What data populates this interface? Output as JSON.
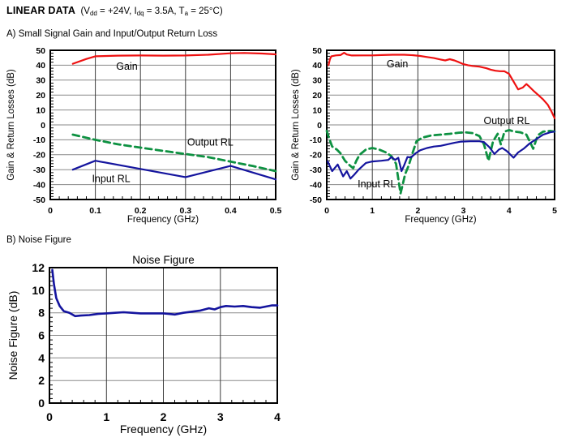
{
  "page": {
    "title_bold": "LINEAR DATA",
    "conditions": {
      "p1": "  (V",
      "s1": "dd",
      "p2": " = +24V, I",
      "s2": "dq",
      "p3": " = 3.5A, T",
      "s3": "a",
      "p4": " = 25°C)"
    },
    "section_a": "A) Small Signal Gain and Input/Output Return Loss",
    "section_b": "B) Noise Figure"
  },
  "colors": {
    "gain": "#ee1111",
    "input_rl": "#14149e",
    "output_rl": "#0d9141",
    "grid_h": "#8a8a8a",
    "grid_v": "#3c3c3c",
    "border": "#000000",
    "text": "#000000"
  },
  "chart_data": [
    {
      "id": "gain-rl-low",
      "type": "line",
      "title": "",
      "xlabel": "Frequency (GHz)",
      "ylabel": "Gain & Return Losses (dB)",
      "xlim": [
        0,
        0.5
      ],
      "ylim": [
        -50,
        50
      ],
      "x_ticks": [
        0,
        0.1,
        0.2,
        0.3,
        0.4,
        0.5
      ],
      "x_tick_labels": [
        "0",
        "0.1",
        "0.2",
        "0.3",
        "0.4",
        "0.5"
      ],
      "y_ticks": [
        50,
        40,
        30,
        20,
        10,
        0,
        -10,
        -20,
        -30,
        -40,
        -50
      ],
      "y_tick_labels": [
        "50",
        "40",
        "30",
        "20",
        "10",
        "0",
        "-10",
        "-20",
        "-30",
        "-40",
        "-50"
      ],
      "x_minor": 0.02,
      "y_minor": 2,
      "grid": true,
      "series": [
        {
          "name": "Gain",
          "color_key": "gain",
          "dash": false,
          "width": 2.2,
          "points": [
            [
              0.05,
              41
            ],
            [
              0.08,
              44.2
            ],
            [
              0.1,
              46
            ],
            [
              0.15,
              46.4
            ],
            [
              0.2,
              46.5
            ],
            [
              0.25,
              46.4
            ],
            [
              0.3,
              46.5
            ],
            [
              0.35,
              47
            ],
            [
              0.4,
              48
            ],
            [
              0.43,
              48.2
            ],
            [
              0.47,
              47.8
            ],
            [
              0.5,
              47.3
            ]
          ]
        },
        {
          "name": "Output RL",
          "color_key": "output_rl",
          "dash": true,
          "width": 2.8,
          "points": [
            [
              0.05,
              -6.5
            ],
            [
              0.1,
              -10
            ],
            [
              0.15,
              -13
            ],
            [
              0.2,
              -15.2
            ],
            [
              0.25,
              -17.4
            ],
            [
              0.3,
              -19.5
            ],
            [
              0.35,
              -21.6
            ],
            [
              0.4,
              -24.6
            ],
            [
              0.45,
              -27.6
            ],
            [
              0.5,
              -31
            ]
          ]
        },
        {
          "name": "Input RL",
          "color_key": "input_rl",
          "dash": false,
          "width": 2.2,
          "points": [
            [
              0.05,
              -30
            ],
            [
              0.1,
              -24
            ],
            [
              0.2,
              -29.5
            ],
            [
              0.3,
              -35
            ],
            [
              0.4,
              -27.5
            ],
            [
              0.5,
              -36.5
            ]
          ]
        }
      ],
      "labels": [
        {
          "text": "Gain",
          "x": 0.17,
          "y": 39.5
        },
        {
          "text": "Output RL",
          "x": 0.355,
          "y": -11.5
        },
        {
          "text": "Input RL",
          "x": 0.135,
          "y": -35.8
        }
      ]
    },
    {
      "id": "gain-rl-high",
      "type": "line",
      "title": "",
      "xlabel": "Frequency (GHz)",
      "ylabel": "Gain & Return Losses (dB)",
      "xlim": [
        0,
        5
      ],
      "ylim": [
        -50,
        50
      ],
      "x_ticks": [
        0,
        1,
        2,
        3,
        4,
        5
      ],
      "x_tick_labels": [
        "0",
        "1",
        "2",
        "3",
        "4",
        "5"
      ],
      "y_ticks": [
        50,
        40,
        30,
        20,
        10,
        0,
        -10,
        -20,
        -30,
        -40,
        -50
      ],
      "y_tick_labels": [
        "50",
        "40",
        "30",
        "20",
        "10",
        "0",
        "-10",
        "-20",
        "-30",
        "-40",
        "-50"
      ],
      "x_minor": 0.2,
      "y_minor": 2,
      "grid": true,
      "series": [
        {
          "name": "Gain",
          "color_key": "gain",
          "dash": false,
          "width": 2.2,
          "points": [
            [
              0.04,
              40
            ],
            [
              0.07,
              44
            ],
            [
              0.1,
              46
            ],
            [
              0.2,
              46.6
            ],
            [
              0.3,
              46.8
            ],
            [
              0.38,
              48.3
            ],
            [
              0.44,
              47.2
            ],
            [
              0.55,
              46.5
            ],
            [
              0.8,
              46.6
            ],
            [
              1.0,
              46.6
            ],
            [
              1.2,
              46.8
            ],
            [
              1.45,
              47
            ],
            [
              1.7,
              47
            ],
            [
              1.9,
              46.7
            ],
            [
              2.05,
              46.2
            ],
            [
              2.2,
              45.5
            ],
            [
              2.35,
              44.8
            ],
            [
              2.5,
              43.8
            ],
            [
              2.6,
              43.2
            ],
            [
              2.7,
              44
            ],
            [
              2.8,
              43.2
            ],
            [
              2.9,
              42
            ],
            [
              3.0,
              40.7
            ],
            [
              3.1,
              40
            ],
            [
              3.2,
              39.5
            ],
            [
              3.35,
              39
            ],
            [
              3.5,
              38
            ],
            [
              3.6,
              37
            ],
            [
              3.7,
              36.3
            ],
            [
              3.8,
              36
            ],
            [
              3.9,
              35.9
            ],
            [
              4.0,
              34.2
            ],
            [
              4.1,
              29
            ],
            [
              4.2,
              23.8
            ],
            [
              4.3,
              25
            ],
            [
              4.38,
              27.4
            ],
            [
              4.45,
              25.5
            ],
            [
              4.55,
              22.5
            ],
            [
              4.65,
              19.8
            ],
            [
              4.75,
              17
            ],
            [
              4.85,
              13.5
            ],
            [
              4.93,
              9
            ],
            [
              5.0,
              4.5
            ]
          ]
        },
        {
          "name": "Output RL",
          "color_key": "output_rl",
          "dash": true,
          "width": 2.8,
          "points": [
            [
              0.0,
              -4
            ],
            [
              0.05,
              -9
            ],
            [
              0.12,
              -14.5
            ],
            [
              0.22,
              -16.5
            ],
            [
              0.3,
              -19
            ],
            [
              0.4,
              -24
            ],
            [
              0.5,
              -27
            ],
            [
              0.58,
              -29
            ],
            [
              0.65,
              -24
            ],
            [
              0.72,
              -20
            ],
            [
              0.86,
              -16.5
            ],
            [
              1.0,
              -15.5
            ],
            [
              1.15,
              -16.5
            ],
            [
              1.3,
              -18.5
            ],
            [
              1.42,
              -21
            ],
            [
              1.52,
              -26
            ],
            [
              1.62,
              -46
            ],
            [
              1.72,
              -33
            ],
            [
              1.8,
              -27
            ],
            [
              1.88,
              -19
            ],
            [
              1.97,
              -11
            ],
            [
              2.1,
              -8.5
            ],
            [
              2.3,
              -7
            ],
            [
              2.5,
              -6.5
            ],
            [
              2.7,
              -6
            ],
            [
              2.9,
              -5.2
            ],
            [
              3.05,
              -5
            ],
            [
              3.2,
              -5.5
            ],
            [
              3.35,
              -7.5
            ],
            [
              3.45,
              -13
            ],
            [
              3.55,
              -24
            ],
            [
              3.65,
              -11
            ],
            [
              3.75,
              -6
            ],
            [
              3.82,
              -13
            ],
            [
              3.9,
              -4.5
            ],
            [
              4.0,
              -3.5
            ],
            [
              4.12,
              -4.5
            ],
            [
              4.25,
              -5
            ],
            [
              4.38,
              -6.5
            ],
            [
              4.47,
              -12
            ],
            [
              4.53,
              -16
            ],
            [
              4.63,
              -7
            ],
            [
              4.75,
              -4.5
            ],
            [
              4.9,
              -4
            ],
            [
              5.0,
              -4.5
            ]
          ]
        },
        {
          "name": "Input RL",
          "color_key": "input_rl",
          "dash": false,
          "width": 2.2,
          "points": [
            [
              0.02,
              -24.5
            ],
            [
              0.12,
              -31
            ],
            [
              0.24,
              -26.5
            ],
            [
              0.36,
              -34.5
            ],
            [
              0.44,
              -31
            ],
            [
              0.52,
              -36
            ],
            [
              0.6,
              -33.5
            ],
            [
              0.7,
              -30
            ],
            [
              0.86,
              -25.5
            ],
            [
              1.0,
              -24.5
            ],
            [
              1.2,
              -24
            ],
            [
              1.35,
              -23.5
            ],
            [
              1.42,
              -21.5
            ],
            [
              1.5,
              -23.5
            ],
            [
              1.57,
              -22
            ],
            [
              1.64,
              -31
            ],
            [
              1.7,
              -27
            ],
            [
              1.77,
              -21.5
            ],
            [
              1.85,
              -21.8
            ],
            [
              1.95,
              -19
            ],
            [
              2.05,
              -17
            ],
            [
              2.2,
              -15.5
            ],
            [
              2.35,
              -14.5
            ],
            [
              2.5,
              -14
            ],
            [
              2.65,
              -13
            ],
            [
              2.8,
              -12
            ],
            [
              2.95,
              -11.2
            ],
            [
              3.15,
              -11
            ],
            [
              3.35,
              -11
            ],
            [
              3.45,
              -11.5
            ],
            [
              3.57,
              -15
            ],
            [
              3.68,
              -19.5
            ],
            [
              3.78,
              -16.5
            ],
            [
              3.85,
              -15.5
            ],
            [
              3.95,
              -17.5
            ],
            [
              4.1,
              -22
            ],
            [
              4.2,
              -18.5
            ],
            [
              4.32,
              -16
            ],
            [
              4.45,
              -12.5
            ],
            [
              4.6,
              -9.5
            ],
            [
              4.75,
              -6.5
            ],
            [
              4.9,
              -5
            ],
            [
              5.0,
              -4.5
            ]
          ]
        }
      ],
      "labels": [
        {
          "text": "Gain",
          "x": 1.55,
          "y": 41
        },
        {
          "text": "Output RL",
          "x": 3.95,
          "y": 3
        },
        {
          "text": "Input RL",
          "x": 1.1,
          "y": -39.5
        }
      ]
    },
    {
      "id": "noise-figure",
      "type": "line",
      "title": "Noise Figure",
      "xlabel": "Frequency (GHz)",
      "ylabel": "Noise Figure (dB)",
      "xlim": [
        0,
        4
      ],
      "ylim": [
        0,
        12
      ],
      "x_ticks": [
        0,
        1,
        2,
        3,
        4
      ],
      "x_tick_labels": [
        "0",
        "1",
        "2",
        "3",
        "4"
      ],
      "y_ticks": [
        12,
        10,
        8,
        6,
        4,
        2,
        0
      ],
      "y_tick_labels": [
        "12",
        "10",
        "8",
        "6",
        "4",
        "2",
        "0"
      ],
      "x_minor": 0.2,
      "y_minor": 0.4,
      "grid": true,
      "series": [
        {
          "name": "Noise Figure",
          "color_key": "input_rl",
          "dash": false,
          "width": 2.6,
          "points": [
            [
              0.05,
              11.8
            ],
            [
              0.08,
              10.5
            ],
            [
              0.12,
              9.3
            ],
            [
              0.18,
              8.6
            ],
            [
              0.25,
              8.15
            ],
            [
              0.35,
              8.0
            ],
            [
              0.45,
              7.7
            ],
            [
              0.55,
              7.75
            ],
            [
              0.7,
              7.8
            ],
            [
              0.85,
              7.9
            ],
            [
              1.0,
              7.95
            ],
            [
              1.15,
              8.0
            ],
            [
              1.3,
              8.05
            ],
            [
              1.45,
              8.0
            ],
            [
              1.6,
              7.95
            ],
            [
              1.8,
              7.95
            ],
            [
              2.0,
              7.95
            ],
            [
              2.1,
              7.9
            ],
            [
              2.2,
              7.85
            ],
            [
              2.35,
              8.0
            ],
            [
              2.5,
              8.1
            ],
            [
              2.65,
              8.2
            ],
            [
              2.8,
              8.4
            ],
            [
              2.9,
              8.3
            ],
            [
              3.0,
              8.5
            ],
            [
              3.1,
              8.6
            ],
            [
              3.25,
              8.55
            ],
            [
              3.4,
              8.6
            ],
            [
              3.55,
              8.5
            ],
            [
              3.7,
              8.45
            ],
            [
              3.8,
              8.55
            ],
            [
              3.9,
              8.65
            ],
            [
              4.0,
              8.65
            ]
          ]
        }
      ],
      "labels": []
    }
  ]
}
